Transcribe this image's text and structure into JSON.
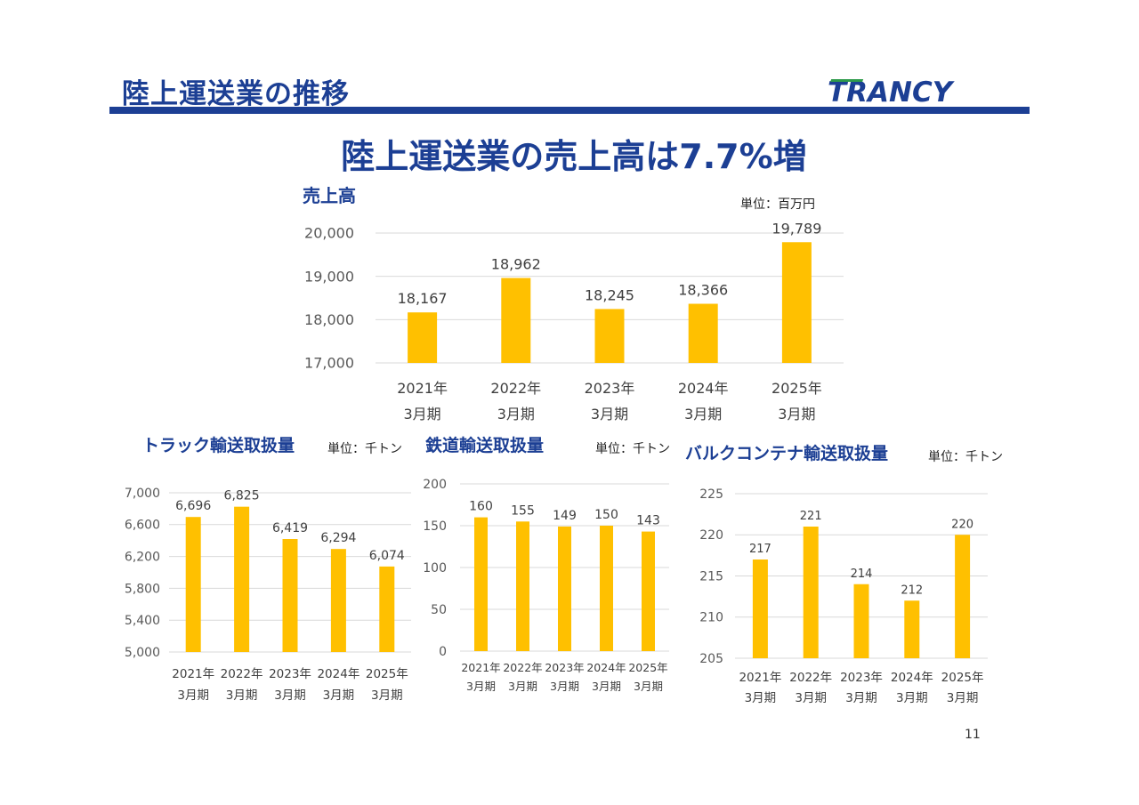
{
  "page": {
    "title": "陸上運送業の推移",
    "headline": "陸上運送業の売上高は7.7%増",
    "page_number": "11",
    "logo_text": "TRANCY",
    "accent_color": "#1c3f94",
    "bar_color": "#ffc000"
  },
  "chart_data": [
    {
      "type": "bar",
      "title": "売上高",
      "unit": "単位：百万円",
      "categories": [
        "2021年|3月期",
        "2022年|3月期",
        "2023年|3月期",
        "2024年|3月期",
        "2025年|3月期"
      ],
      "values": [
        18167,
        18962,
        18245,
        18366,
        19789
      ],
      "value_labels": [
        "18,167",
        "18,962",
        "18,245",
        "18,366",
        "19,789"
      ],
      "ylim": [
        17000,
        20000
      ],
      "yticks": [
        17000,
        18000,
        19000,
        20000
      ],
      "ytick_labels": [
        "17,000",
        "18,000",
        "19,000",
        "20,000"
      ],
      "grid": true
    },
    {
      "type": "bar",
      "title": "トラック輸送取扱量",
      "unit": "単位：千トン",
      "categories": [
        "2021年|3月期",
        "2022年|3月期",
        "2023年|3月期",
        "2024年|3月期",
        "2025年|3月期"
      ],
      "values": [
        6696,
        6825,
        6419,
        6294,
        6074
      ],
      "value_labels": [
        "6,696",
        "6,825",
        "6,419",
        "6,294",
        "6,074"
      ],
      "ylim": [
        5000,
        7000
      ],
      "yticks": [
        5000,
        5400,
        5800,
        6200,
        6600,
        7000
      ],
      "ytick_labels": [
        "5,000",
        "5,400",
        "5,800",
        "6,200",
        "6,600",
        "7,000"
      ],
      "grid": true
    },
    {
      "type": "bar",
      "title": "鉄道輸送取扱量",
      "unit": "単位：千トン",
      "categories": [
        "2021年|3月期",
        "2022年|3月期",
        "2023年|3月期",
        "2024年|3月期",
        "2025年|3月期"
      ],
      "values": [
        160,
        155,
        149,
        150,
        143
      ],
      "value_labels": [
        "160",
        "155",
        "149",
        "150",
        "143"
      ],
      "ylim": [
        0,
        200
      ],
      "yticks": [
        0,
        50,
        100,
        150,
        200
      ],
      "ytick_labels": [
        "0",
        "50",
        "100",
        "150",
        "200"
      ],
      "grid": true
    },
    {
      "type": "bar",
      "title": "バルクコンテナ輸送取扱量",
      "unit": "単位：千トン",
      "categories": [
        "2021年|3月期",
        "2022年|3月期",
        "2023年|3月期",
        "2024年|3月期",
        "2025年|3月期"
      ],
      "values": [
        217,
        221,
        214,
        212,
        220
      ],
      "value_labels": [
        "217",
        "221",
        "214",
        "212",
        "220"
      ],
      "ylim": [
        205,
        225
      ],
      "yticks": [
        205,
        210,
        215,
        220,
        225
      ],
      "ytick_labels": [
        "205",
        "210",
        "215",
        "220",
        "225"
      ],
      "grid": true
    }
  ]
}
